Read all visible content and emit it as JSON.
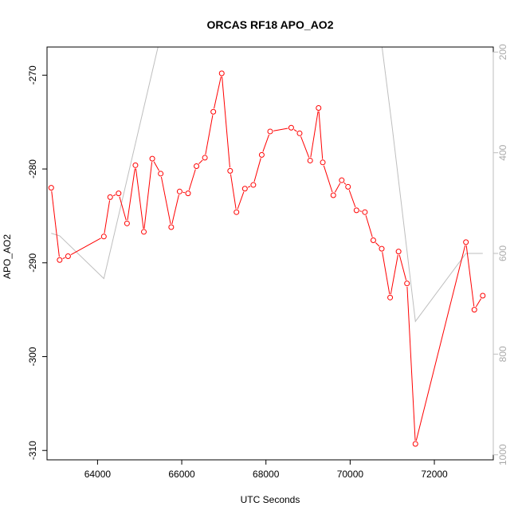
{
  "chart_data": {
    "type": "line",
    "title": "ORCAS RF18 APO_AO2",
    "xlabel": "UTC Seconds",
    "ylabel": "APO_AO2",
    "xlim": [
      62800,
      73400
    ],
    "ylim": [
      -311.0,
      -267.0
    ],
    "y2lim": [
      1010,
      190
    ],
    "x_ticks": [
      64000,
      66000,
      68000,
      70000,
      72000
    ],
    "x_tick_labels": [
      "64000",
      "66000",
      "68000",
      "70000",
      "72000"
    ],
    "y_ticks": [
      -310,
      -300,
      -290,
      -280,
      -270
    ],
    "y_tick_labels": [
      "-310",
      "-300",
      "-290",
      "-280",
      "-270"
    ],
    "y2_ticks": [
      200,
      400,
      600,
      800,
      1000
    ],
    "y2_tick_labels": [
      "200",
      "400",
      "600",
      "800",
      "1000"
    ],
    "grid": false,
    "colors": {
      "primary": "#ff0000",
      "secondary": "#bebebe",
      "axis": "#000000"
    },
    "series": [
      {
        "axis": "left",
        "style": "line-with-open-circles",
        "color": "#ff0000",
        "x": [
          62900,
          63100,
          63300,
          64150,
          64300,
          64500,
          64700,
          64900,
          65100,
          65300,
          65500,
          65750,
          65950,
          66150,
          66350,
          66550,
          66750,
          66950,
          67150,
          67300,
          67500,
          67700,
          67900,
          68100,
          68600,
          68800,
          69050,
          69250,
          69350,
          69600,
          69800,
          69950,
          70150,
          70350,
          70550,
          70750,
          70950,
          71150,
          71350,
          71550,
          72750,
          72950,
          73150
        ],
        "y": [
          -282.0,
          -289.7,
          -289.3,
          -287.2,
          -283.0,
          -282.6,
          -285.8,
          -279.6,
          -286.7,
          -278.9,
          -280.5,
          -286.2,
          -282.4,
          -282.6,
          -279.7,
          -278.8,
          -273.9,
          -269.8,
          -280.2,
          -284.6,
          -282.1,
          -281.7,
          -278.5,
          -276.0,
          -275.6,
          -276.2,
          -279.1,
          -273.5,
          -279.3,
          -282.8,
          -281.2,
          -281.9,
          -284.4,
          -284.6,
          -287.6,
          -288.5,
          -293.7,
          -288.8,
          -292.2,
          -309.3,
          -287.8,
          -295.0,
          -293.5
        ]
      },
      {
        "axis": "right",
        "style": "line",
        "color": "#bebebe",
        "x": [
          62900,
          63100,
          64150,
          65450,
          66550,
          66750,
          68400,
          70750,
          71000,
          71550,
          72750,
          73150
        ],
        "y": [
          560,
          565,
          650,
          185,
          180,
          180,
          185,
          185,
          350,
          735,
          600,
          600
        ]
      }
    ]
  }
}
